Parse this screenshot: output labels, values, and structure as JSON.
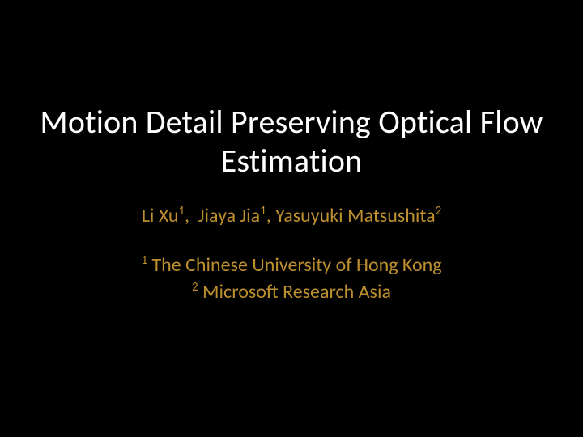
{
  "slide": {
    "background_color": "#000000",
    "title": {
      "text": "Motion Detail Preserving Optical Flow Estimation",
      "color": "#ffffff",
      "fontsize_pt": 40,
      "font_weight": 400
    },
    "authors": {
      "entries": [
        {
          "name": "Li Xu",
          "sup": "1"
        },
        {
          "name": "Jiaya Jia",
          "sup": "1"
        },
        {
          "name": "Yasuyuki Matsushita",
          "sup": "2"
        }
      ],
      "color": "#bd8f2e",
      "fontsize_pt": 24
    },
    "affiliations": {
      "entries": [
        {
          "sup": "1",
          "text": "The Chinese University of Hong Kong"
        },
        {
          "sup": "2",
          "text": "Microsoft Research Asia"
        }
      ],
      "color": "#bd8f2e",
      "fontsize_pt": 24
    }
  }
}
